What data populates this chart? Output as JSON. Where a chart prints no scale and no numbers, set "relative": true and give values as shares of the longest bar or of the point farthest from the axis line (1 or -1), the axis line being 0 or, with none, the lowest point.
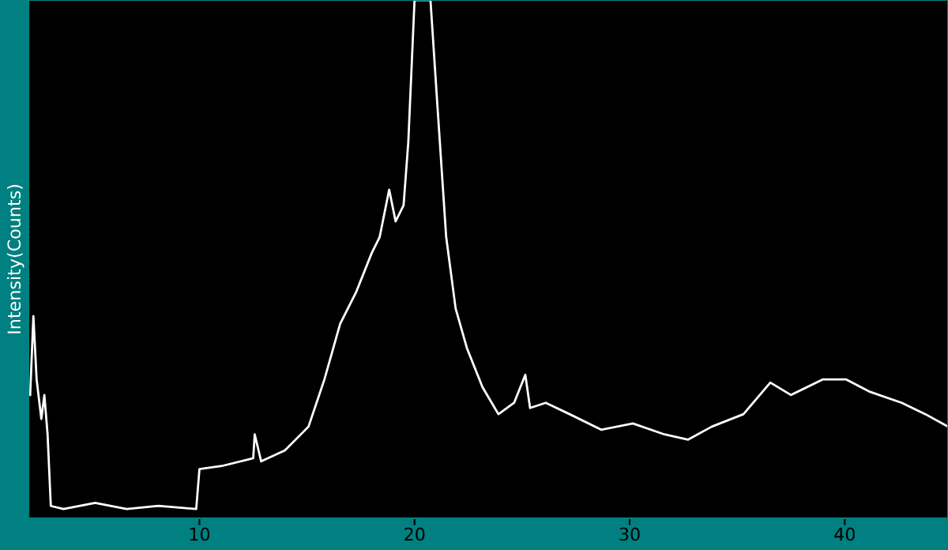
{
  "chart_data": {
    "type": "line",
    "ylabel": "Intensity(Counts)",
    "relative": true,
    "xlim": [
      2.05,
      44.8
    ],
    "xticks": [
      10,
      20,
      30,
      40
    ],
    "grid": false,
    "legend": false,
    "marker": "none",
    "line_style": "solid",
    "series": [
      {
        "color": "#ffffff",
        "x": [
          2.13,
          2.28,
          2.43,
          2.65,
          2.79,
          2.94,
          3.09,
          3.68,
          5.15,
          6.62,
          8.09,
          9.85,
          10.0,
          11.03,
          12.5,
          12.57,
          12.87,
          13.97,
          15.07,
          15.81,
          16.54,
          17.28,
          18.01,
          18.38,
          18.82,
          19.12,
          19.49,
          19.71,
          20.0,
          20.74,
          21.03,
          21.47,
          21.91,
          22.43,
          23.16,
          23.9,
          24.63,
          25.15,
          25.37,
          26.1,
          27.21,
          28.68,
          30.15,
          31.62,
          32.72,
          33.82,
          35.29,
          36.54,
          37.5,
          38.97,
          40.07,
          41.18,
          42.65,
          43.75,
          44.8
        ],
        "values": [
          0.238,
          0.39,
          0.268,
          0.192,
          0.238,
          0.162,
          0.024,
          0.018,
          0.03,
          0.018,
          0.024,
          0.018,
          0.095,
          0.101,
          0.116,
          0.162,
          0.11,
          0.131,
          0.177,
          0.268,
          0.375,
          0.436,
          0.512,
          0.543,
          0.634,
          0.573,
          0.604,
          0.726,
          1,
          1,
          0.817,
          0.543,
          0.405,
          0.329,
          0.253,
          0.201,
          0.223,
          0.277,
          0.213,
          0.223,
          0.201,
          0.171,
          0.183,
          0.162,
          0.152,
          0.177,
          0.201,
          0.262,
          0.238,
          0.268,
          0.268,
          0.244,
          0.223,
          0.201,
          0.177
        ]
      }
    ]
  }
}
